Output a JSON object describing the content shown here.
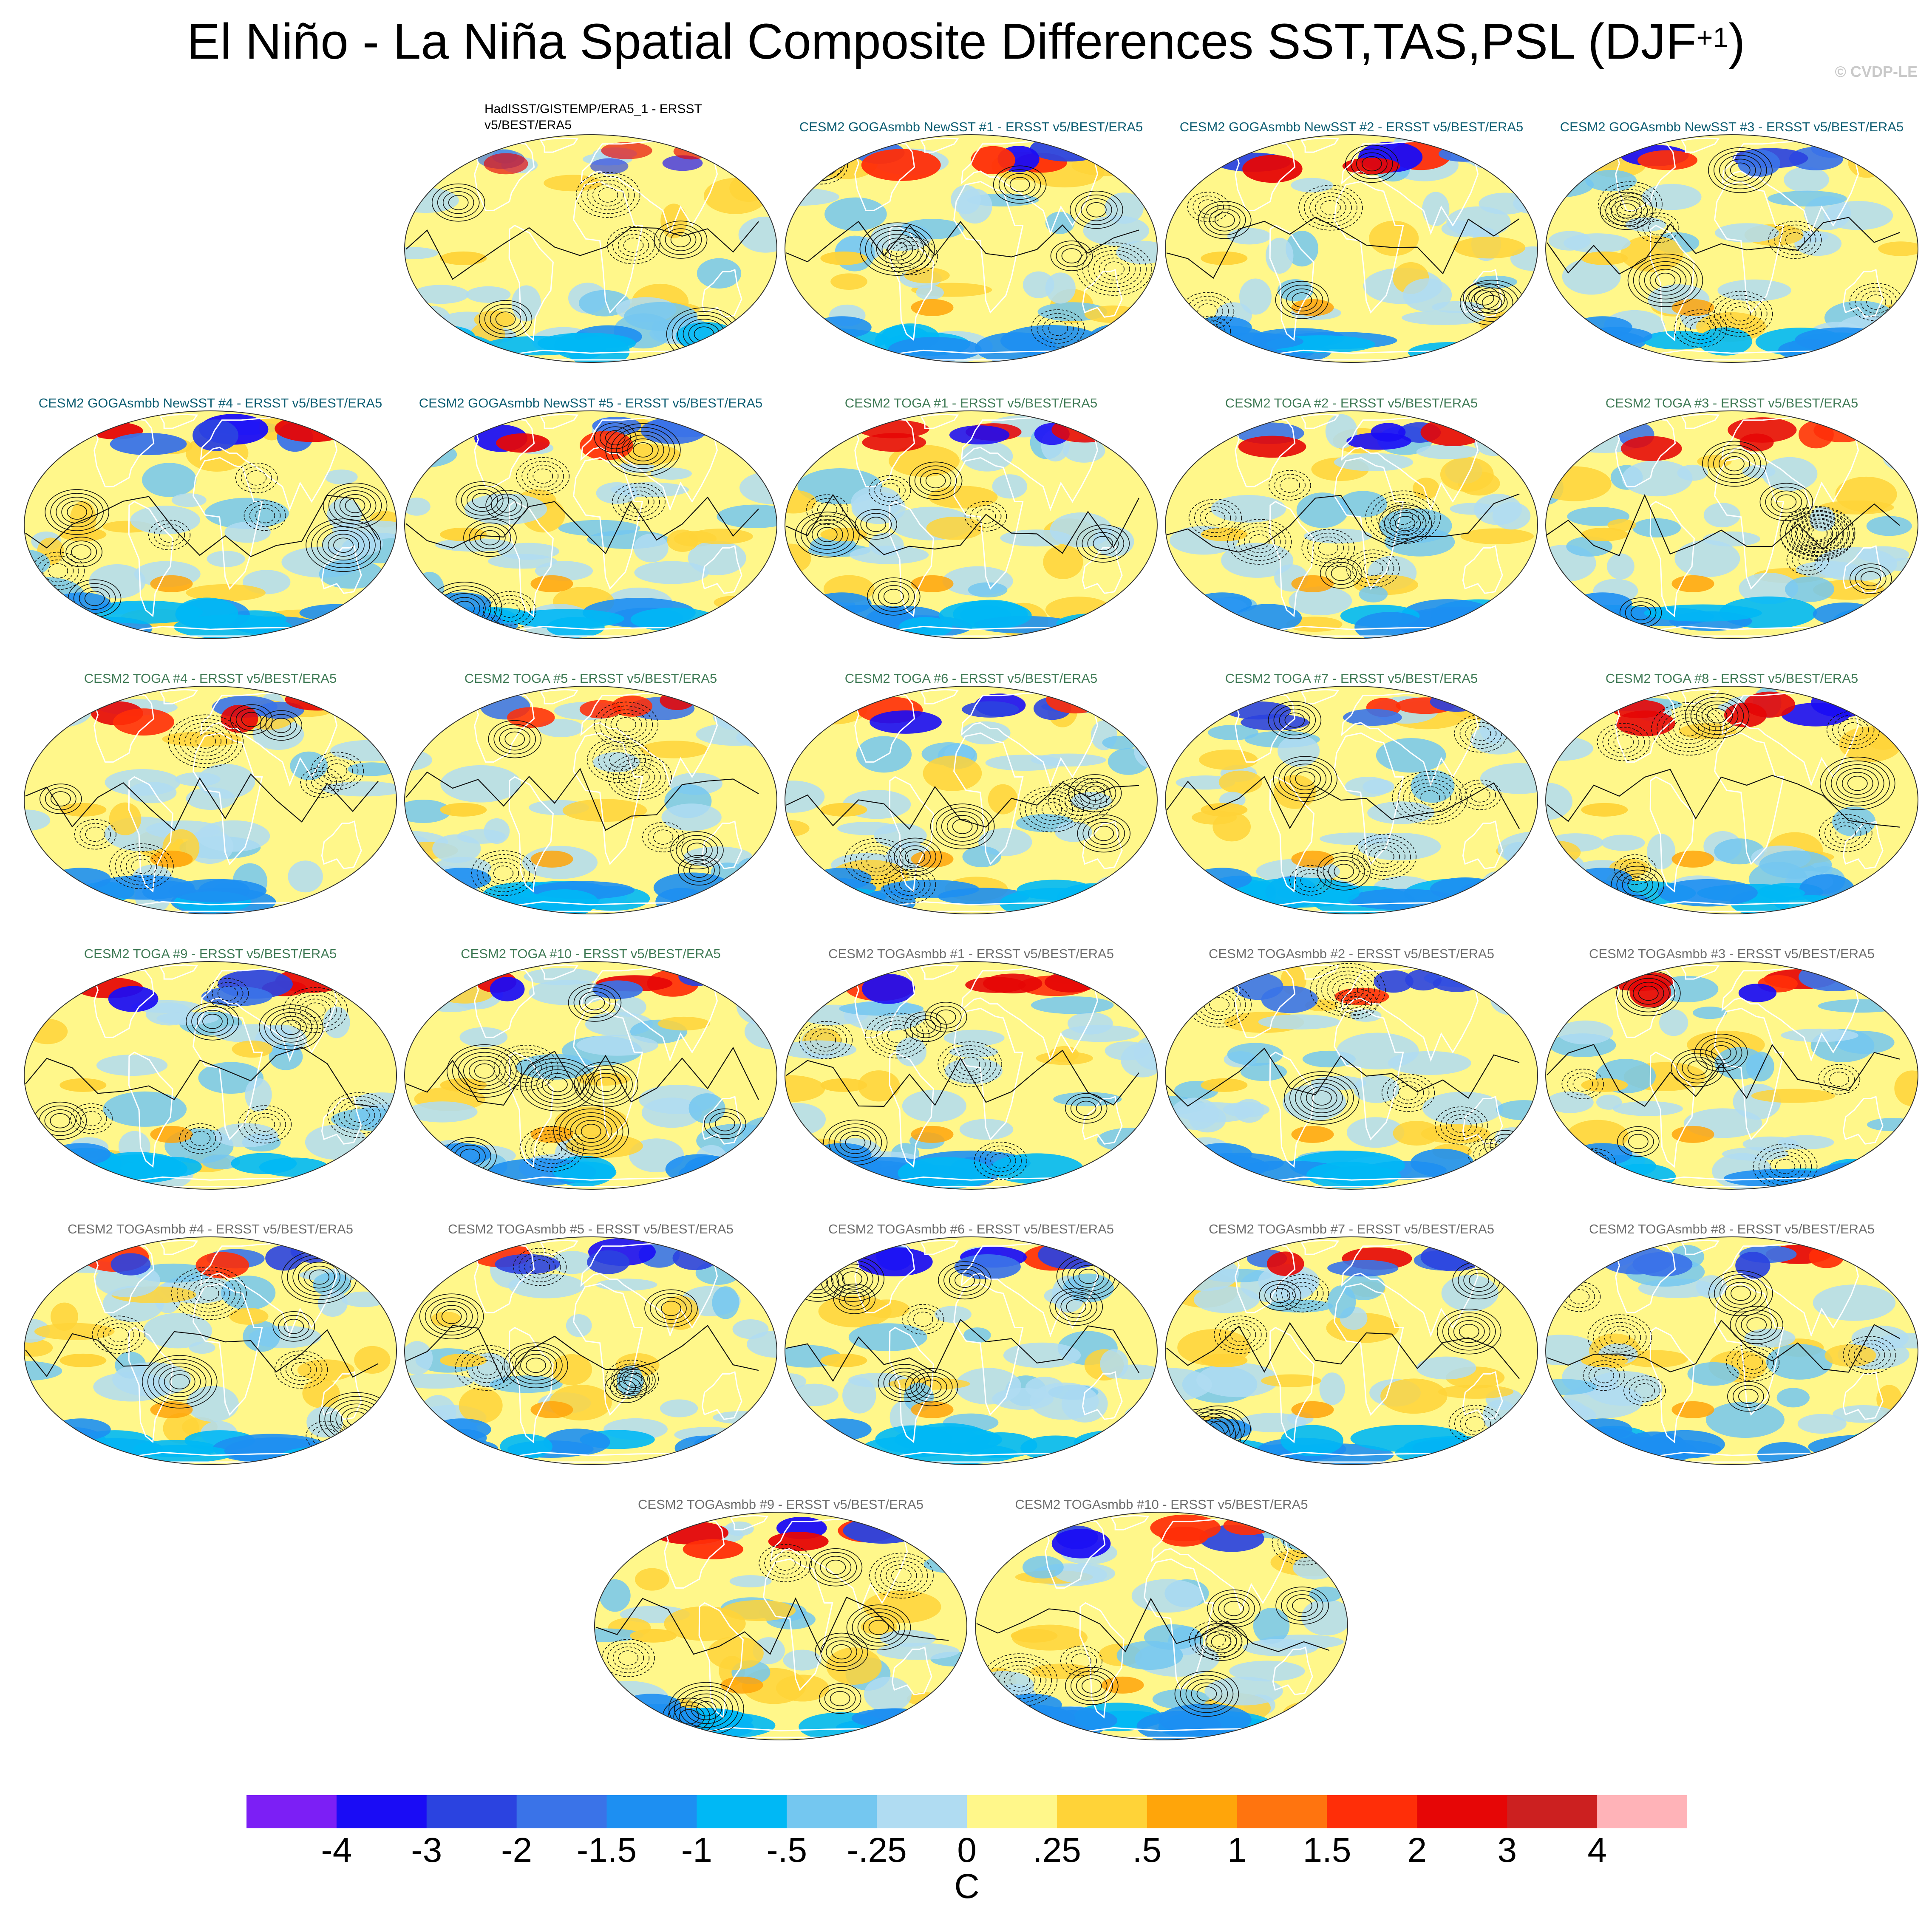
{
  "title": "El Niño - La Niña Spatial Composite Differences SST,TAS,PSL (DJF",
  "title_sup": "+1",
  "title_close": ")",
  "copyright": "© CVDP-LE",
  "colors": {
    "levels": [
      "#7c1ff5",
      "#1a0cf5",
      "#2b43e0",
      "#3a73e8",
      "#1d8ff2",
      "#00b8f5",
      "#74c7f0",
      "#b0dcf2",
      "#fff78a",
      "#ffd338",
      "#ffa50a",
      "#ff740f",
      "#ff2e08",
      "#e60606",
      "#cc2020",
      "#ffb3b8"
    ],
    "land_mask": "#ffffff",
    "goga_title": "#0d5d72",
    "toga_title": "#3f7a55",
    "togasmbb_title": "#6d6d6d"
  },
  "panels": [
    {
      "title": "HadISST/GISTEMP/ERA5_1 - ERSST v5/BEST/ERA5",
      "group": "obs",
      "intensity": 0.35,
      "seed": 3
    },
    {
      "title": "CESM2 GOGAsmbb NewSST #1 - ERSST v5/BEST/ERA5",
      "group": "goga",
      "intensity": 0.9,
      "seed": 11
    },
    {
      "title": "CESM2 GOGAsmbb NewSST #2 - ERSST v5/BEST/ERA5",
      "group": "goga",
      "intensity": 0.9,
      "seed": 17
    },
    {
      "title": "CESM2 GOGAsmbb NewSST #3 - ERSST v5/BEST/ERA5",
      "group": "goga",
      "intensity": 0.85,
      "seed": 23
    },
    {
      "title": "CESM2 GOGAsmbb NewSST #4 - ERSST v5/BEST/ERA5",
      "group": "goga",
      "intensity": 0.9,
      "seed": 29
    },
    {
      "title": "CESM2 GOGAsmbb NewSST #5 - ERSST v5/BEST/ERA5",
      "group": "goga",
      "intensity": 0.85,
      "seed": 31
    },
    {
      "title": "CESM2 TOGA #1 - ERSST v5/BEST/ERA5",
      "group": "toga",
      "intensity": 0.75,
      "seed": 37
    },
    {
      "title": "CESM2 TOGA #2 - ERSST v5/BEST/ERA5",
      "group": "toga",
      "intensity": 0.8,
      "seed": 41
    },
    {
      "title": "CESM2 TOGA #3 - ERSST v5/BEST/ERA5",
      "group": "toga",
      "intensity": 0.75,
      "seed": 43
    },
    {
      "title": "CESM2 TOGA #4 - ERSST v5/BEST/ERA5",
      "group": "toga",
      "intensity": 0.8,
      "seed": 47
    },
    {
      "title": "CESM2 TOGA #5 - ERSST v5/BEST/ERA5",
      "group": "toga",
      "intensity": 0.75,
      "seed": 53
    },
    {
      "title": "CESM2 TOGA #6 - ERSST v5/BEST/ERA5",
      "group": "toga",
      "intensity": 0.8,
      "seed": 59
    },
    {
      "title": "CESM2 TOGA #7 - ERSST v5/BEST/ERA5",
      "group": "toga",
      "intensity": 0.8,
      "seed": 61
    },
    {
      "title": "CESM2 TOGA #8 - ERSST v5/BEST/ERA5",
      "group": "toga",
      "intensity": 0.8,
      "seed": 67
    },
    {
      "title": "CESM2 TOGA #9 - ERSST v5/BEST/ERA5",
      "group": "toga",
      "intensity": 0.85,
      "seed": 71
    },
    {
      "title": "CESM2 TOGA #10 - ERSST v5/BEST/ERA5",
      "group": "toga",
      "intensity": 0.85,
      "seed": 73
    },
    {
      "title": "CESM2 TOGAsmbb #1 - ERSST v5/BEST/ERA5",
      "group": "togasmbb",
      "intensity": 0.8,
      "seed": 79
    },
    {
      "title": "CESM2 TOGAsmbb #2 - ERSST v5/BEST/ERA5",
      "group": "togasmbb",
      "intensity": 0.8,
      "seed": 83
    },
    {
      "title": "CESM2 TOGAsmbb #3 - ERSST v5/BEST/ERA5",
      "group": "togasmbb",
      "intensity": 0.85,
      "seed": 89
    },
    {
      "title": "CESM2 TOGAsmbb #4 - ERSST v5/BEST/ERA5",
      "group": "togasmbb",
      "intensity": 0.8,
      "seed": 97
    },
    {
      "title": "CESM2 TOGAsmbb #5 - ERSST v5/BEST/ERA5",
      "group": "togasmbb",
      "intensity": 0.8,
      "seed": 101
    },
    {
      "title": "CESM2 TOGAsmbb #6 - ERSST v5/BEST/ERA5",
      "group": "togasmbb",
      "intensity": 0.85,
      "seed": 103
    },
    {
      "title": "CESM2 TOGAsmbb #7 - ERSST v5/BEST/ERA5",
      "group": "togasmbb",
      "intensity": 0.8,
      "seed": 107
    },
    {
      "title": "CESM2 TOGAsmbb #8 - ERSST v5/BEST/ERA5",
      "group": "togasmbb",
      "intensity": 0.85,
      "seed": 109
    },
    {
      "title": "CESM2 TOGAsmbb #9 - ERSST v5/BEST/ERA5",
      "group": "togasmbb",
      "intensity": 0.9,
      "seed": 113
    },
    {
      "title": "CESM2 TOGAsmbb #10 - ERSST v5/BEST/ERA5",
      "group": "togasmbb",
      "intensity": 0.85,
      "seed": 127
    }
  ],
  "chart_data": {
    "type": "heatmap",
    "title": "El Niño - La Niña Spatial Composite Differences SST,TAS,PSL (DJF+1)",
    "projection": "Robinson (global)",
    "variables": [
      "SST",
      "TAS",
      "PSL (contours)"
    ],
    "season": "DJF+1",
    "colorbar": {
      "units": "C",
      "tick_labels": [
        "-4",
        "-3",
        "-2",
        "-1.5",
        "-1",
        "-.5",
        "-.25",
        "0",
        ".25",
        ".5",
        "1",
        "1.5",
        "2",
        "3",
        "4"
      ],
      "levels": [
        -4,
        -3,
        -2,
        -1.5,
        -1,
        -0.5,
        -0.25,
        0,
        0.25,
        0.5,
        1,
        1.5,
        2,
        3,
        4
      ],
      "n_colors": 16
    },
    "n_panels": 26
  }
}
